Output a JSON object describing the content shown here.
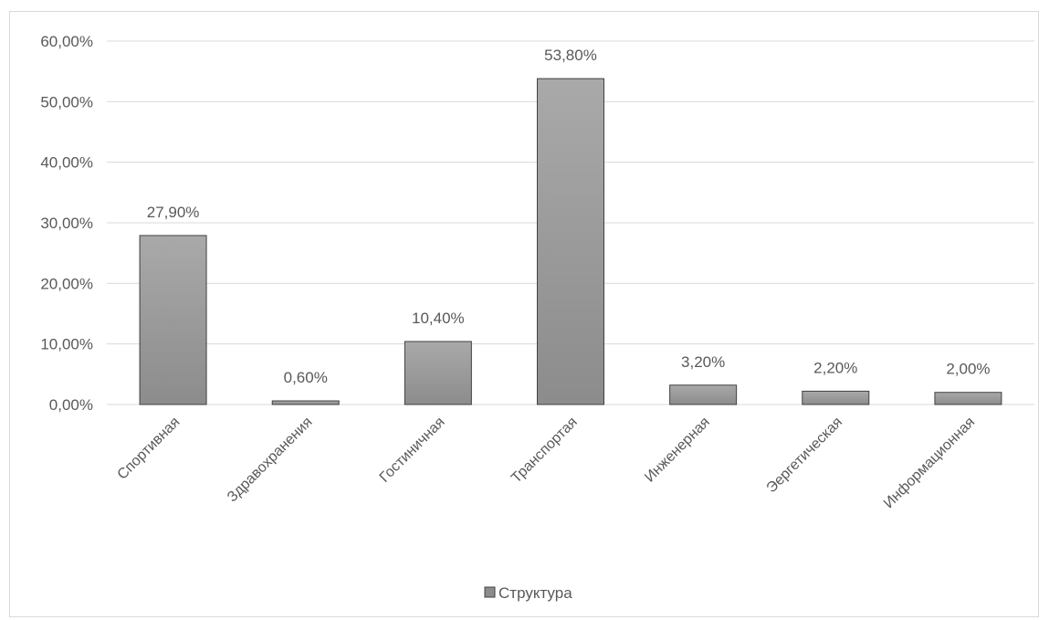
{
  "chart_data": {
    "type": "bar",
    "categories": [
      "Спортивная",
      "Здравохранения",
      "Гостиничная",
      "Транспортая",
      "Инженерная",
      "Эергетическая",
      "Информационная"
    ],
    "series": [
      {
        "name": "Структура",
        "values": [
          27.9,
          0.6,
          10.4,
          53.8,
          3.2,
          2.2,
          2.0
        ],
        "data_labels": [
          "27,90%",
          "0,60%",
          "10,40%",
          "53,80%",
          "3,20%",
          "2,20%",
          "2,00%"
        ]
      }
    ],
    "y_ticks": [
      "0,00%",
      "10,00%",
      "20,00%",
      "30,00%",
      "40,00%",
      "50,00%",
      "60,00%"
    ],
    "ylim": [
      0,
      60
    ],
    "ytick_step": 10,
    "grid": true,
    "legend": "bottom-center",
    "colors": {
      "bar_top": "#a9a9a9",
      "bar_bottom": "#8c8c8c",
      "bar_stroke": "#404040",
      "grid": "#d9d9d9",
      "text": "#595959"
    }
  }
}
